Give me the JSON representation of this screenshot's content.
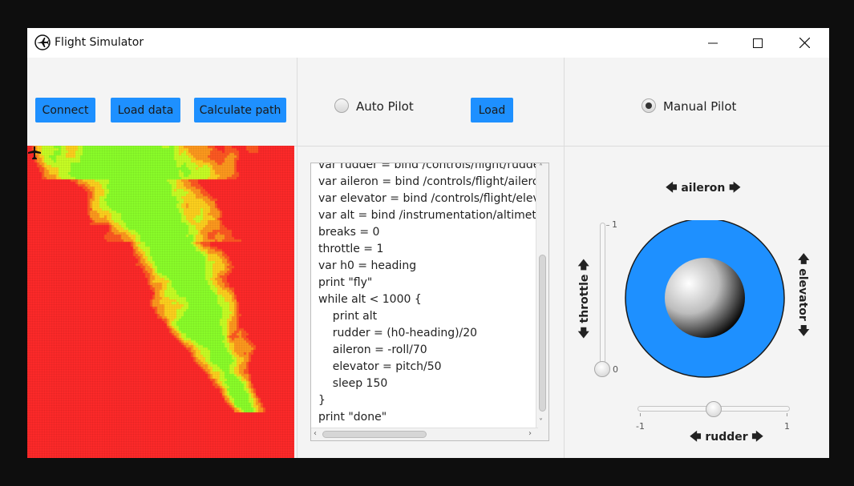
{
  "window": {
    "title": "Flight Simulator"
  },
  "toolbar": {
    "connect_label": "Connect",
    "load_data_label": "Load data",
    "calculate_path_label": "Calculate path",
    "auto_pilot_label": "Auto Pilot",
    "load_label": "Load",
    "manual_pilot_label": "Manual Pilot",
    "auto_pilot_selected": false,
    "manual_pilot_selected": true
  },
  "script": {
    "lines": [
      "var rudder = bind /controls/flight/rudder",
      "var aileron = bind /controls/flight/aileron",
      "var elevator = bind /controls/flight/elevator",
      "var alt = bind /instrumentation/altimeter/",
      "breaks = 0",
      "throttle = 1",
      "var h0 = heading",
      "print \"fly\"",
      "while alt < 1000 {",
      "    print alt",
      "    rudder = (h0-heading)/20",
      "    aileron = -roll/70",
      "    elevator = pitch/50",
      "    sleep 150",
      "}",
      "print \"done\""
    ]
  },
  "controls": {
    "aileron_label": "aileron",
    "elevator_label": "elevator",
    "throttle_label": "throttle",
    "rudder_label": "rudder",
    "throttle_max": "1",
    "throttle_min": "0",
    "rudder_min": "-1",
    "rudder_max": "1",
    "throttle_value": 0,
    "rudder_value": 0,
    "joystick_color": "#1e90ff"
  },
  "icons": {
    "app": "airplane-icon",
    "minimize": "minimize-icon",
    "maximize": "maximize-icon",
    "close": "close-icon",
    "plane_marker": "airplane-icon"
  },
  "colors": {
    "button": "#1e90ff",
    "map_low": "#ff2a2a",
    "map_mid": "#ffd21e",
    "map_high": "#8cff2a"
  }
}
